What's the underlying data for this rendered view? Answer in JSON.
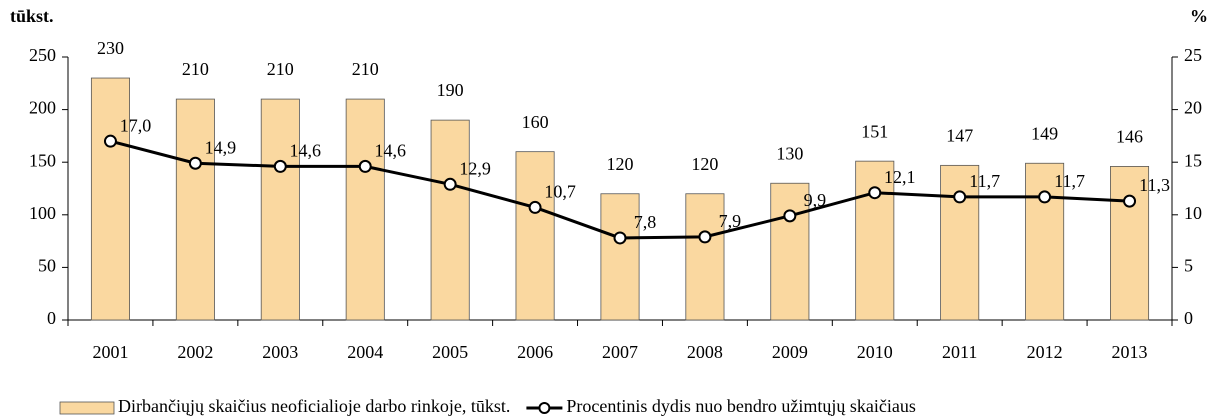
{
  "chart_data": {
    "type": "bar",
    "y_label": "tūkst.",
    "y2_label": "%",
    "categories": [
      "2001",
      "2002",
      "2003",
      "2004",
      "2005",
      "2006",
      "2007",
      "2008",
      "2009",
      "2010",
      "2011",
      "2012",
      "2013"
    ],
    "series": [
      {
        "name": "Dirbančiųjų skaičius neoficialioje darbo rinkoje, tūkst.",
        "type": "bar",
        "color": "#fad8a0",
        "values": [
          230,
          210,
          210,
          210,
          190,
          160,
          120,
          120,
          130,
          151,
          147,
          149,
          146
        ]
      },
      {
        "name": "Procentinis dydis nuo bendro užimtųjų skaičiaus",
        "type": "line",
        "axis": "y2",
        "color": "#000000",
        "values": [
          17.0,
          14.9,
          14.6,
          14.6,
          12.9,
          10.7,
          7.8,
          7.9,
          9.9,
          12.1,
          11.7,
          11.7,
          11.3
        ],
        "value_labels": [
          "17,0",
          "14,9",
          "14,6",
          "14,6",
          "12,9",
          "10,7",
          "7,8",
          "7,9",
          "9,9",
          "12,1",
          "11,7",
          "11,7",
          "11,3"
        ]
      }
    ],
    "ylim": [
      0,
      250
    ],
    "yticks": [
      0,
      50,
      100,
      150,
      200,
      250
    ],
    "y2lim": [
      0,
      25
    ],
    "y2ticks": [
      0,
      5,
      10,
      15,
      20,
      25
    ]
  }
}
